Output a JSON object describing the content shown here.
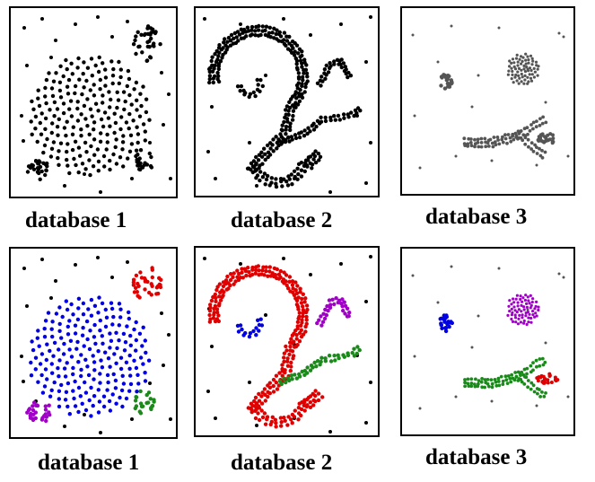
{
  "captions": {
    "top_1": "database 1",
    "top_2": "database 2",
    "top_3": "database 3",
    "bottom_1": "database 1",
    "bottom_2": "database 2",
    "bottom_3": "database 3"
  },
  "colors": {
    "unclustered": "#000000",
    "noise_db3": "#555555",
    "red": "#e00000",
    "blue": "#0000e0",
    "green": "#1a8a1a",
    "purple": "#a000c8"
  },
  "legend_note": ""
}
